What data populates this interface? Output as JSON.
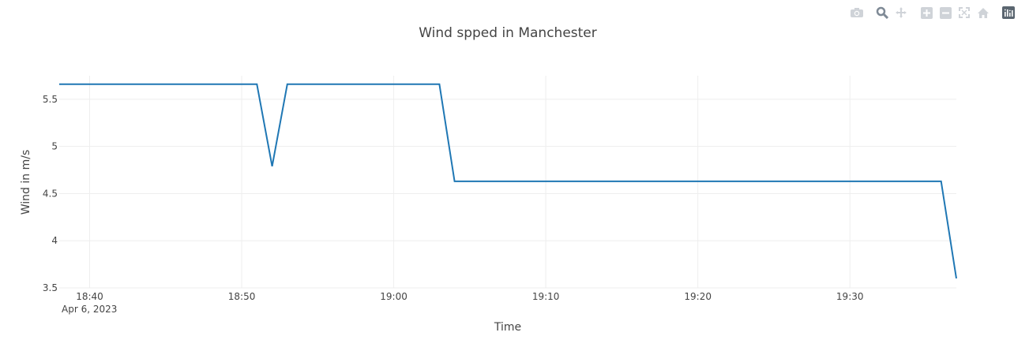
{
  "toolbar": {
    "buttons": [
      {
        "name": "camera-icon",
        "label": "Download plot as a png"
      },
      {
        "name": "zoom-icon",
        "label": "Zoom"
      },
      {
        "name": "pan-icon",
        "label": "Pan"
      },
      {
        "name": "zoom-in-icon",
        "label": "Zoom in"
      },
      {
        "name": "zoom-out-icon",
        "label": "Zoom out"
      },
      {
        "name": "autoscale-icon",
        "label": "Autoscale"
      },
      {
        "name": "home-icon",
        "label": "Reset axes"
      },
      {
        "name": "plotly-logo-icon",
        "label": "Produced with Plotly"
      }
    ]
  },
  "chart_data": {
    "type": "line",
    "title": "Wind spped in Manchester",
    "xlabel": "Time",
    "ylabel": "Wind in m/s",
    "x_date_label": "Apr 6, 2023",
    "xlim": [
      "18:38",
      "19:37"
    ],
    "ylim": [
      3.5,
      5.75
    ],
    "x_ticks": [
      "18:40",
      "18:50",
      "19:00",
      "19:10",
      "19:20",
      "19:30"
    ],
    "y_ticks": [
      "3.5",
      "4",
      "4.5",
      "5",
      "5.5"
    ],
    "grid": true,
    "line_color": "#1f77b4",
    "series": [
      {
        "x": [
          "18:38",
          "18:51",
          "18:52",
          "18:53",
          "19:03",
          "19:04",
          "19:36",
          "19:37"
        ],
        "values": [
          5.66,
          5.66,
          4.79,
          5.66,
          5.66,
          4.63,
          4.63,
          3.6
        ]
      }
    ]
  }
}
